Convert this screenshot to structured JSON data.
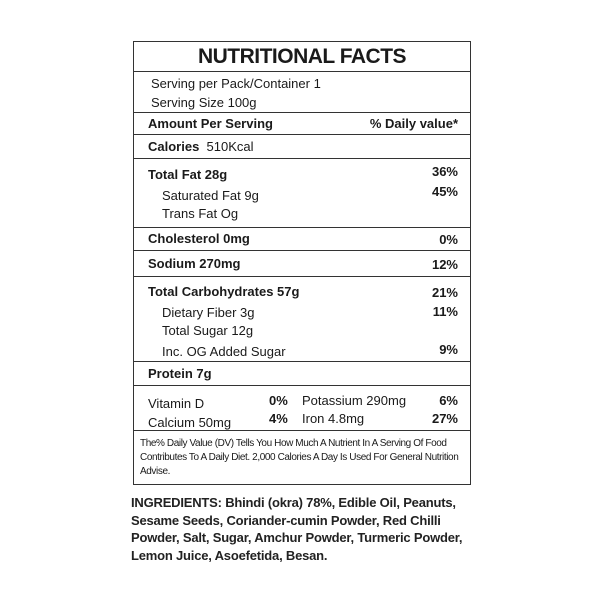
{
  "title": "NUTRITIONAL FACTS",
  "serving_per_pack": "Serving per Pack/Container 1",
  "serving_size": "Serving Size 100g",
  "amount_header": "Amount Per Serving",
  "dv_header": "% Daily value*",
  "calories": {
    "label": "Calories",
    "value": "510Kcal"
  },
  "total_fat": {
    "label": "Total Fat 28g",
    "dv": "36%"
  },
  "saturated_fat": {
    "label": "Saturated Fat 9g",
    "dv": "45%"
  },
  "trans_fat": {
    "label": "Trans Fat Og"
  },
  "cholesterol": {
    "label": "Cholesterol 0mg",
    "dv": "0%"
  },
  "sodium": {
    "label": "Sodium 270mg",
    "dv": "12%"
  },
  "total_carbs": {
    "label": "Total Carbohydrates 57g",
    "dv": "21%"
  },
  "dietary_fiber": {
    "label": "Dietary Fiber 3g",
    "dv": "11%"
  },
  "total_sugar": {
    "label": "Total Sugar 12g"
  },
  "added_sugar": {
    "label": "Inc. OG Added Sugar",
    "dv": "9%"
  },
  "protein": {
    "label": "Protein 7g"
  },
  "vitamin_d": {
    "label": "Vitamin D",
    "dv": "0%"
  },
  "calcium": {
    "label": "Calcium 50mg",
    "dv": "4%"
  },
  "potassium": {
    "label": "Potassium 290mg",
    "dv": "6%"
  },
  "iron": {
    "label": "Iron 4.8mg",
    "dv": "27%"
  },
  "footnote": "The% Daily Value (DV) Tells You How Much A Nutrient In A Serving Of Food Contributes To A Daily Diet. 2,000 Calories A Day Is Used For General Nutrition Advise.",
  "ingredients": {
    "label": "INGREDIENTS:",
    "text": " Bhindi (okra) 78%, Edible Oil, Peanuts, Sesame Seeds, Coriander-cumin Powder, Red Chilli Powder, Salt, Sugar, Amchur Powder, Turmeric Powder, Lemon Juice, Asoefetida, Besan."
  }
}
